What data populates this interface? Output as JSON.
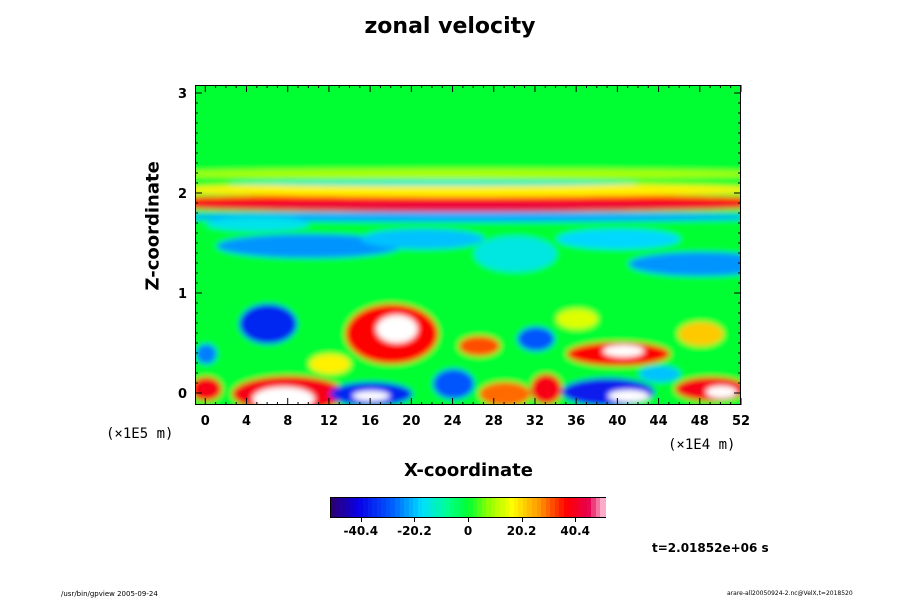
{
  "chart_data": {
    "type": "heatmap",
    "title": "zonal velocity",
    "xlabel": "X-coordinate",
    "ylabel": "Z-coordinate",
    "x_unit": "(×1E4 m)",
    "y_unit": "(×1E5 m)",
    "xlim": [
      -1,
      52
    ],
    "ylim": [
      -0.12,
      3.08
    ],
    "x_ticks": [
      0,
      4,
      8,
      12,
      16,
      20,
      24,
      28,
      32,
      36,
      40,
      44,
      48,
      52
    ],
    "y_ticks": [
      0,
      1,
      2,
      3
    ],
    "colorbar": {
      "ticks": [
        "-40.4",
        "-20.2",
        "0",
        "20.2",
        "40.4"
      ],
      "tick_values": [
        -40.4,
        -20.2,
        0,
        20.2,
        40.4
      ],
      "range": [
        -52,
        52
      ]
    },
    "background_value": 0,
    "features": [
      {
        "x": 25,
        "z": 1.92,
        "rx": 33,
        "rz": 0.08,
        "value": 36
      },
      {
        "x": 25,
        "z": 1.87,
        "rx": 28,
        "rz": 0.05,
        "value": 44
      },
      {
        "x": 25,
        "z": 2.04,
        "rx": 30,
        "rz": 0.07,
        "value": 18
      },
      {
        "x": 22,
        "z": 2.11,
        "rx": 20,
        "rz": 0.03,
        "value": -14
      },
      {
        "x": 25,
        "z": 2.2,
        "rx": 32,
        "rz": 0.05,
        "value": 10
      },
      {
        "x": 25,
        "z": 1.77,
        "rx": 31,
        "rz": 0.05,
        "value": -22
      },
      {
        "x": 10,
        "z": 1.48,
        "rx": 9,
        "rz": 0.12,
        "value": -24
      },
      {
        "x": 21,
        "z": 1.55,
        "rx": 6,
        "rz": 0.1,
        "value": -20
      },
      {
        "x": 40,
        "z": 1.55,
        "rx": 6,
        "rz": 0.1,
        "value": -18
      },
      {
        "x": 48,
        "z": 1.3,
        "rx": 7,
        "rz": 0.12,
        "value": -24
      },
      {
        "x": 30,
        "z": 1.4,
        "rx": 4,
        "rz": 0.18,
        "value": -15
      },
      {
        "x": 5,
        "z": 1.7,
        "rx": 5,
        "rz": 0.07,
        "value": -16
      },
      {
        "x": 6,
        "z": 0.7,
        "rx": 2.8,
        "rz": 0.2,
        "value": -36
      },
      {
        "x": 18,
        "z": 0.6,
        "rx": 4.5,
        "rz": 0.3,
        "value": 38
      },
      {
        "x": 18.5,
        "z": 0.65,
        "rx": 2,
        "rz": 0.14,
        "value": 56
      },
      {
        "x": 26.5,
        "z": 0.48,
        "rx": 2,
        "rz": 0.1,
        "value": 32
      },
      {
        "x": 32,
        "z": 0.55,
        "rx": 1.8,
        "rz": 0.12,
        "value": -30
      },
      {
        "x": 40,
        "z": 0.4,
        "rx": 5,
        "rz": 0.12,
        "value": 38
      },
      {
        "x": 40.5,
        "z": 0.43,
        "rx": 2,
        "rz": 0.06,
        "value": 56
      },
      {
        "x": 48,
        "z": 0.6,
        "rx": 2.2,
        "rz": 0.12,
        "value": 22
      },
      {
        "x": 8,
        "z": 0.0,
        "rx": 5.5,
        "rz": 0.18,
        "value": 40
      },
      {
        "x": 7.5,
        "z": -0.05,
        "rx": 3,
        "rz": 0.12,
        "value": 58
      },
      {
        "x": 16,
        "z": 0.0,
        "rx": 4,
        "rz": 0.12,
        "value": -36
      },
      {
        "x": 16,
        "z": -0.02,
        "rx": 1.8,
        "rz": 0.05,
        "value": -58
      },
      {
        "x": 24,
        "z": 0.1,
        "rx": 2,
        "rz": 0.15,
        "value": -30
      },
      {
        "x": 29,
        "z": 0.0,
        "rx": 2.5,
        "rz": 0.12,
        "value": 30
      },
      {
        "x": 33,
        "z": 0.05,
        "rx": 1.5,
        "rz": 0.15,
        "value": 40
      },
      {
        "x": 39,
        "z": 0.02,
        "rx": 4.5,
        "rz": 0.14,
        "value": -38
      },
      {
        "x": 41,
        "z": -0.02,
        "rx": 2,
        "rz": 0.06,
        "value": -58
      },
      {
        "x": 49,
        "z": 0.05,
        "rx": 3.5,
        "rz": 0.12,
        "value": 40
      },
      {
        "x": 50,
        "z": 0.02,
        "rx": 1.5,
        "rz": 0.06,
        "value": 58
      },
      {
        "x": 0,
        "z": 0.05,
        "rx": 1.5,
        "rz": 0.12,
        "value": 40
      },
      {
        "x": 0,
        "z": 0.4,
        "rx": 1,
        "rz": 0.1,
        "value": -26
      },
      {
        "x": 12,
        "z": 0.3,
        "rx": 2,
        "rz": 0.1,
        "value": 18
      },
      {
        "x": 36,
        "z": 0.75,
        "rx": 2,
        "rz": 0.1,
        "value": 14
      },
      {
        "x": 44,
        "z": 0.2,
        "rx": 2,
        "rz": 0.08,
        "value": -20
      }
    ]
  },
  "time_label": "t=2.01852e+06 s",
  "footer_left": "/usr/bin/gpview 2005-09-24",
  "footer_right": "arare-all20050924-2.nc@VelX,t=2018520"
}
